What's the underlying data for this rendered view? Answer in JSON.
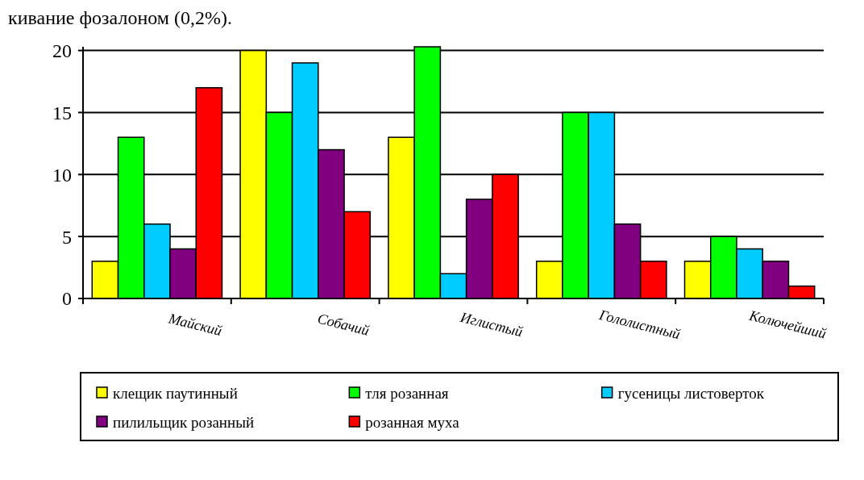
{
  "chart_data": {
    "type": "bar",
    "title": "кивание фозалоном (0,2%).",
    "categories": [
      "Майский",
      "Собачий",
      "Иглистый",
      "Гололистный",
      "Колючейший"
    ],
    "series": [
      {
        "name": "клещик паутинный",
        "color": "#ffff00",
        "values": [
          3,
          20,
          13,
          3,
          3
        ]
      },
      {
        "name": "тля розанная",
        "color": "#00ff00",
        "values": [
          13,
          15,
          20.3,
          15,
          5
        ]
      },
      {
        "name": "гусеницы листоверток",
        "color": "#00ccff",
        "values": [
          6,
          19,
          2,
          15,
          4
        ]
      },
      {
        "name": "пилильщик розанный",
        "color": "#800080",
        "values": [
          4,
          12,
          8,
          6,
          3
        ]
      },
      {
        "name": "розанная муха",
        "color": "#ff0000",
        "values": [
          17,
          7,
          10,
          3,
          1
        ]
      }
    ],
    "ylim": [
      0,
      20.3
    ],
    "yticks": [
      0,
      5,
      10,
      15,
      20
    ],
    "grid": "y",
    "legend": "bottom"
  }
}
